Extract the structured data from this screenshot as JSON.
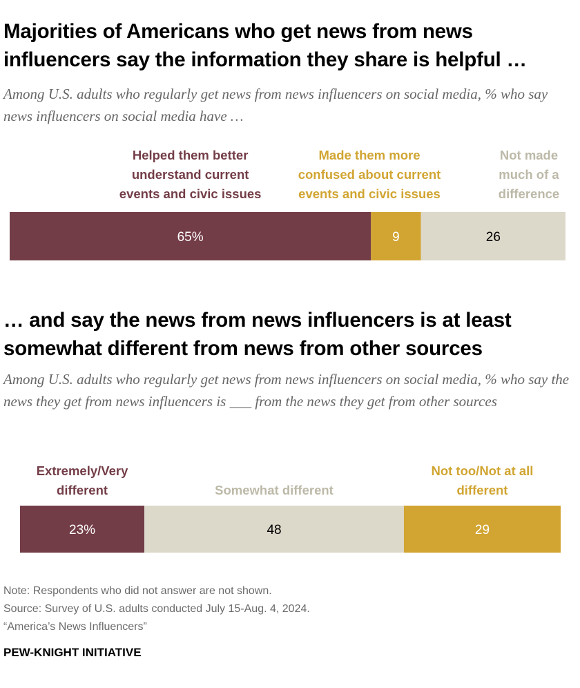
{
  "title_1": "Majorities of Americans who get news from news influencers say the information they share is helpful …",
  "subtitle_1": "Among U.S. adults who regularly get news from news influencers on social media, % who say news influencers on social media have …",
  "title_2": "… and say the news from news influencers is at least somewhat different from news from other sources",
  "subtitle_2": "Among U.S. adults who regularly get news from news influencers on social media, % who say the news they get from news influencers is ___ from the news they get from other sources",
  "note": "Note: Respondents who did not answer are not shown.",
  "source": "Source: Survey of U.S. adults conducted July 15-Aug. 4, 2024.",
  "report": "“America’s News Influencers”",
  "org": "PEW-KNIGHT INITIATIVE",
  "colors": {
    "maroon": "#733d47",
    "gold": "#d2a532",
    "beige": "#dcd8ca",
    "gold_text": "#d1a532",
    "beige_text": "#bdb9a8"
  },
  "chart_data": [
    {
      "type": "bar",
      "orientation": "horizontal-stacked",
      "series": [
        {
          "name": "Helped them better understand current events and civic issues",
          "label_lines": [
            "Helped them better",
            "understand current",
            "events and civic issues"
          ],
          "value": 65,
          "display": "65%",
          "color": "#733d47",
          "label_color": "#733d47",
          "text_color": "#ffffff"
        },
        {
          "name": "Made them more confused about current events and civic issues",
          "label_lines": [
            "Made them more",
            "confused about current",
            "events and civic issues"
          ],
          "value": 9,
          "display": "9",
          "color": "#d2a532",
          "label_color": "#d1a532",
          "text_color": "#ffffff"
        },
        {
          "name": "Not made much of a difference",
          "label_lines": [
            "Not made",
            "much of a",
            "difference"
          ],
          "value": 26,
          "display": "26",
          "color": "#dcd8ca",
          "label_color": "#bdb9a8",
          "text_color": "#000000"
        }
      ]
    },
    {
      "type": "bar",
      "orientation": "horizontal-stacked",
      "series": [
        {
          "name": "Extremely/Very different",
          "label_lines": [
            "Extremely/Very",
            "different"
          ],
          "value": 23,
          "display": "23%",
          "color": "#733d47",
          "label_color": "#733d47",
          "text_color": "#ffffff"
        },
        {
          "name": "Somewhat different",
          "label_lines": [
            "Somewhat different"
          ],
          "value": 48,
          "display": "48",
          "color": "#dcd8ca",
          "label_color": "#bdb9a8",
          "text_color": "#000000"
        },
        {
          "name": "Not too/Not at all different",
          "label_lines": [
            "Not too/Not at all",
            "different"
          ],
          "value": 29,
          "display": "29",
          "color": "#d2a532",
          "label_color": "#d1a532",
          "text_color": "#ffffff"
        }
      ]
    }
  ]
}
